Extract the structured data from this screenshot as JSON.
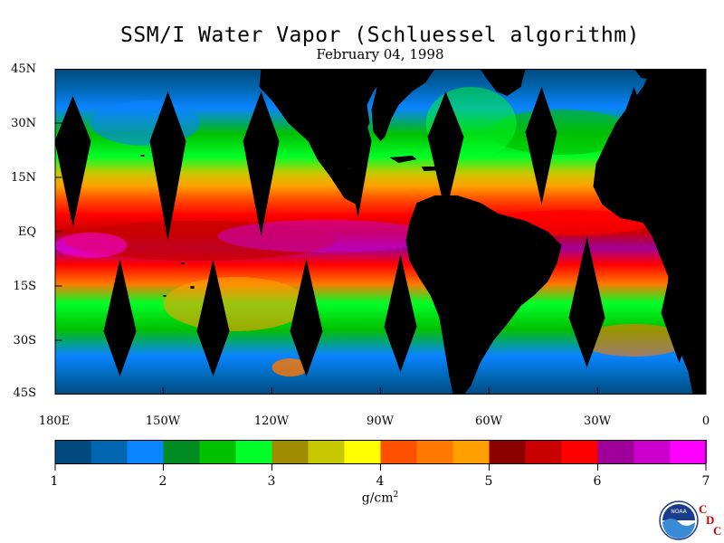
{
  "title": "SSM/I Water Vapor (Schluessel algorithm)",
  "date": "February 04, 1998",
  "y_axis_labels": [
    "45N",
    "30N",
    "15N",
    "EQ",
    "15S",
    "30S",
    "45S"
  ],
  "x_axis_labels": [
    "180E",
    "150W",
    "120W",
    "90W",
    "60W",
    "30W",
    "0"
  ],
  "colorbar": {
    "tick_labels": [
      "1",
      "2",
      "3",
      "4",
      "5",
      "6",
      "7"
    ],
    "units": "g/cm",
    "units_exp": "2",
    "colors": [
      "#004a80",
      "#0066b0",
      "#0a84ff",
      "#008c22",
      "#00c000",
      "#00ff28",
      "#a08c00",
      "#c8c800",
      "#ffff00",
      "#ff5000",
      "#ff7800",
      "#ffa000",
      "#8c0000",
      "#c80000",
      "#ff0000",
      "#a0009a",
      "#cc00cc",
      "#ff00ff"
    ]
  },
  "logo": {
    "noaa_text": "NOAA",
    "c1": "C",
    "d": "D",
    "c2": "C"
  }
}
